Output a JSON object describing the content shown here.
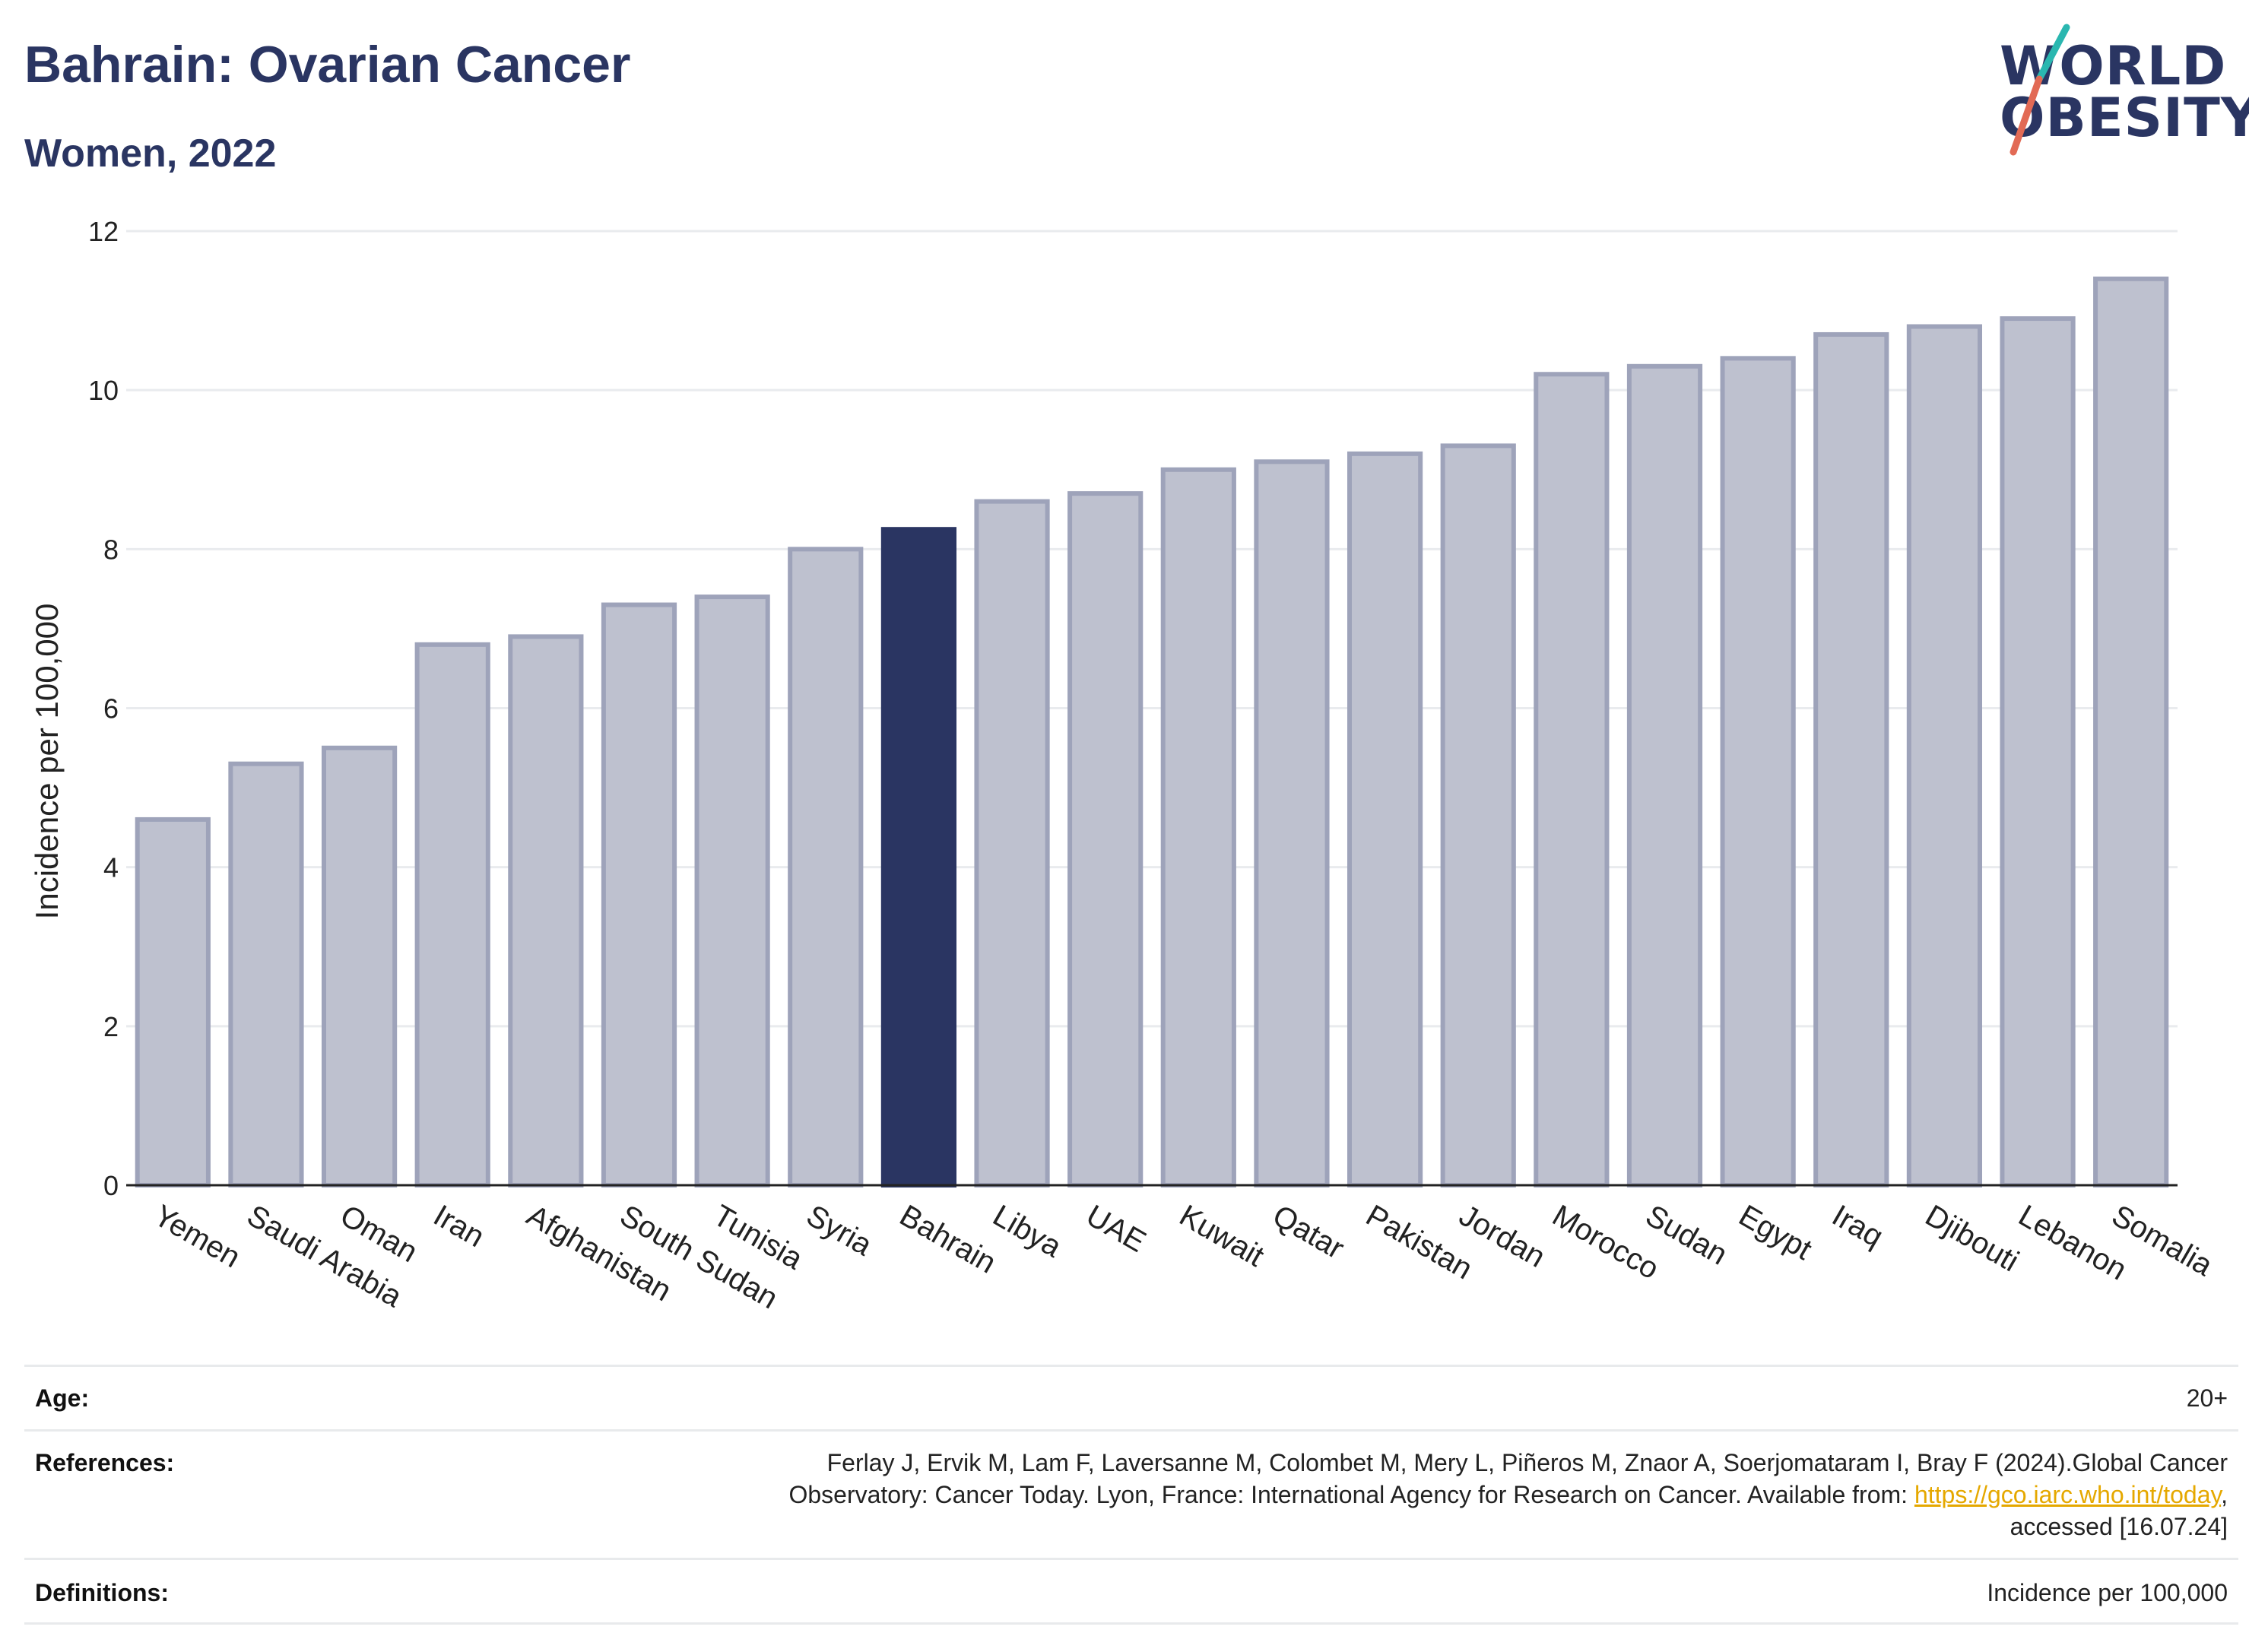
{
  "header": {
    "title": "Bahrain: Ovarian Cancer",
    "subtitle": "Women, 2022"
  },
  "logo": {
    "line1": "WORLD",
    "line2": "OBESITY",
    "colors": {
      "navy": "#2a3562",
      "teal": "#2ab7b0",
      "coral": "#e26a55"
    }
  },
  "chart_data": {
    "type": "bar",
    "ylabel": "Incidence per 100,000",
    "xlabel": "",
    "ylim": [
      0,
      12
    ],
    "yticks": [
      0,
      2,
      4,
      6,
      8,
      10,
      12
    ],
    "grid": true,
    "legend": "none",
    "highlight": "Bahrain",
    "colors": {
      "bar": "#bec1cf",
      "bar_edge": "#9ea3ba",
      "highlight": "#2a3562",
      "grid": "#e9ebee",
      "axis": "#222222"
    },
    "categories": [
      "Yemen",
      "Saudi Arabia",
      "Oman",
      "Iran",
      "Afghanistan",
      "South Sudan",
      "Tunisia",
      "Syria",
      "Bahrain",
      "Libya",
      "UAE",
      "Kuwait",
      "Qatar",
      "Pakistan",
      "Jordan",
      "Morocco",
      "Sudan",
      "Egypt",
      "Iraq",
      "Djibouti",
      "Lebanon",
      "Somalia"
    ],
    "values": [
      4.6,
      5.3,
      5.5,
      6.8,
      6.9,
      7.3,
      7.4,
      8.0,
      8.25,
      8.6,
      8.7,
      9.0,
      9.1,
      9.2,
      9.3,
      10.2,
      10.3,
      10.4,
      10.7,
      10.8,
      10.9,
      11.4
    ]
  },
  "footer": {
    "age_label": "Age:",
    "age_value": "20+",
    "references_label": "References:",
    "references_text_1": "Ferlay J, Ervik M, Lam F, Laversanne M, Colombet M, Mery L, Piñeros M, Znaor A, Soerjomataram I, Bray F (2024).Global Cancer",
    "references_text_2": "Observatory: Cancer Today. Lyon, France: International Agency for Research on Cancer. Available from: ",
    "references_link": "https://gco.iarc.who.int/today",
    "references_text_3": ",",
    "references_text_4": "accessed [16.07.24]",
    "definitions_label": "Definitions:",
    "definitions_value": "Incidence per 100,000"
  }
}
